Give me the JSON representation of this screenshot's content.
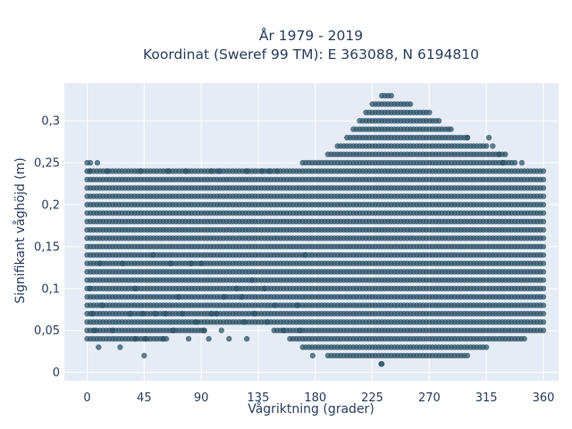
{
  "chart_data": {
    "type": "scatter",
    "title_lines": [
      "År 1979 - 2019",
      "Koordinat (Sweref 99 TM): E 363088, N 6194810"
    ],
    "xlabel": "Vågriktning (grader)",
    "ylabel": "Signifikant våghöjd (m)",
    "xlim": [
      -18,
      372
    ],
    "ylim": [
      -0.01,
      0.345
    ],
    "x_ticks": [
      0,
      45,
      90,
      135,
      180,
      225,
      270,
      315,
      360
    ],
    "x_tick_labels": [
      "0",
      "45",
      "90",
      "135",
      "180",
      "225",
      "270",
      "315",
      "360"
    ],
    "y_ticks": [
      0,
      0.05,
      0.1,
      0.15,
      0.2,
      0.25,
      0.3
    ],
    "y_tick_labels": [
      "0",
      "0,05",
      "0,1",
      "0,15",
      "0,2",
      "0,25",
      "0,3"
    ],
    "grid": true,
    "marker_color": "#2f5468",
    "background_color": "#e5ecf6",
    "series": [
      {
        "envelope": {
          "direction_deg": [
            0,
            30,
            60,
            90,
            120,
            150,
            170,
            190,
            205,
            215,
            225,
            232,
            240,
            255,
            270,
            285,
            300,
            315,
            330,
            345,
            360
          ],
          "min_height_m": [
            0.04,
            0.04,
            0.04,
            0.05,
            0.06,
            0.05,
            0.03,
            0.02,
            0.02,
            0.02,
            0.02,
            0.01,
            0.02,
            0.02,
            0.02,
            0.02,
            0.02,
            0.03,
            0.04,
            0.04,
            0.05
          ],
          "max_height_m": [
            0.25,
            0.24,
            0.24,
            0.24,
            0.24,
            0.24,
            0.25,
            0.26,
            0.28,
            0.3,
            0.32,
            0.33,
            0.33,
            0.32,
            0.31,
            0.29,
            0.28,
            0.27,
            0.26,
            0.24,
            0.24
          ]
        },
        "points": [
          {
            "x": 2,
            "y": 0.24
          },
          {
            "x": 8,
            "y": 0.25
          },
          {
            "x": 16,
            "y": 0.24
          },
          {
            "x": 42,
            "y": 0.24
          },
          {
            "x": 64,
            "y": 0.24
          },
          {
            "x": 78,
            "y": 0.24
          },
          {
            "x": 98,
            "y": 0.24
          },
          {
            "x": 104,
            "y": 0.24
          },
          {
            "x": 126,
            "y": 0.24
          },
          {
            "x": 138,
            "y": 0.24
          },
          {
            "x": 144,
            "y": 0.24
          },
          {
            "x": 150,
            "y": 0.24
          },
          {
            "x": 287,
            "y": 0.29
          },
          {
            "x": 300,
            "y": 0.28
          },
          {
            "x": 317,
            "y": 0.28
          },
          {
            "x": 320,
            "y": 0.27
          },
          {
            "x": 325,
            "y": 0.26
          },
          {
            "x": 343,
            "y": 0.25
          },
          {
            "x": 328,
            "y": 0.25
          },
          {
            "x": 232,
            "y": 0.01
          },
          {
            "x": 45,
            "y": 0.02
          },
          {
            "x": 178,
            "y": 0.02
          },
          {
            "x": 2,
            "y": 0.1
          },
          {
            "x": 4,
            "y": 0.07
          },
          {
            "x": 9,
            "y": 0.03
          },
          {
            "x": 20,
            "y": 0.05
          },
          {
            "x": 26,
            "y": 0.03
          },
          {
            "x": 38,
            "y": 0.04
          },
          {
            "x": 38,
            "y": 0.1
          },
          {
            "x": 44,
            "y": 0.07
          },
          {
            "x": 46,
            "y": 0.04
          },
          {
            "x": 52,
            "y": 0.14
          },
          {
            "x": 54,
            "y": 0.07
          },
          {
            "x": 60,
            "y": 0.04
          },
          {
            "x": 62,
            "y": 0.07
          },
          {
            "x": 66,
            "y": 0.13
          },
          {
            "x": 72,
            "y": 0.09
          },
          {
            "x": 75,
            "y": 0.07
          },
          {
            "x": 82,
            "y": 0.13
          },
          {
            "x": 90,
            "y": 0.13
          },
          {
            "x": 80,
            "y": 0.04
          },
          {
            "x": 86,
            "y": 0.06
          },
          {
            "x": 96,
            "y": 0.04
          },
          {
            "x": 98,
            "y": 0.07
          },
          {
            "x": 102,
            "y": 0.07
          },
          {
            "x": 106,
            "y": 0.05
          },
          {
            "x": 108,
            "y": 0.09
          },
          {
            "x": 112,
            "y": 0.04
          },
          {
            "x": 118,
            "y": 0.1
          },
          {
            "x": 122,
            "y": 0.09
          },
          {
            "x": 124,
            "y": 0.06
          },
          {
            "x": 126,
            "y": 0.04
          },
          {
            "x": 130,
            "y": 0.11
          },
          {
            "x": 132,
            "y": 0.07
          },
          {
            "x": 140,
            "y": 0.1
          },
          {
            "x": 142,
            "y": 0.06
          },
          {
            "x": 148,
            "y": 0.08
          },
          {
            "x": 155,
            "y": 0.05
          },
          {
            "x": 166,
            "y": 0.08
          },
          {
            "x": 172,
            "y": 0.14
          },
          {
            "x": 168,
            "y": 0.05
          },
          {
            "x": 92,
            "y": 0.05
          },
          {
            "x": 68,
            "y": 0.05
          },
          {
            "x": 34,
            "y": 0.07
          },
          {
            "x": 12,
            "y": 0.08
          },
          {
            "x": 6,
            "y": 0.05
          },
          {
            "x": 28,
            "y": 0.13
          },
          {
            "x": 10,
            "y": 0.13
          }
        ]
      }
    ]
  }
}
